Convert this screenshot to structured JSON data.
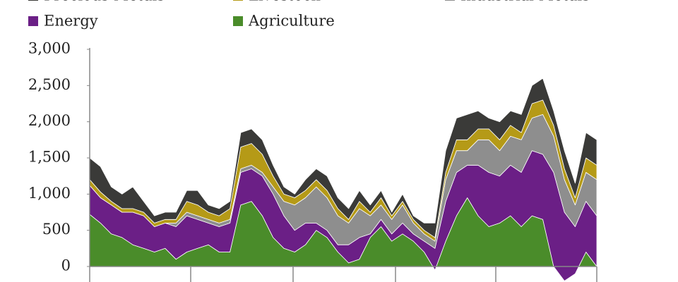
{
  "chart_data": {
    "type": "stacked_area",
    "categories": [
      null,
      null,
      null,
      null,
      null,
      null,
      null,
      null,
      null,
      null,
      null,
      null,
      null,
      null,
      null,
      null,
      null,
      null,
      null,
      null,
      null,
      null,
      null,
      null,
      null,
      null,
      null,
      null,
      null,
      null,
      null,
      null,
      null,
      null,
      null,
      null,
      null,
      null,
      null,
      null,
      null,
      null,
      null,
      null,
      null,
      null,
      null,
      null
    ],
    "series": [
      {
        "name": "Precious Metals",
        "color": "#3a3a38",
        "values": [
          300,
          350,
          200,
          200,
          300,
          150,
          100,
          100,
          100,
          150,
          200,
          100,
          100,
          100,
          200,
          200,
          200,
          150,
          100,
          50,
          150,
          150,
          200,
          150,
          150,
          150,
          100,
          100,
          50,
          100,
          50,
          100,
          200,
          300,
          300,
          350,
          250,
          150,
          250,
          200,
          250,
          250,
          300,
          200,
          250,
          200,
          350,
          350
        ]
      },
      {
        "name": "Livestock",
        "color": "#b59a17",
        "values": [
          80,
          80,
          50,
          50,
          50,
          50,
          50,
          50,
          50,
          150,
          150,
          100,
          100,
          150,
          300,
          300,
          250,
          150,
          100,
          100,
          100,
          100,
          100,
          100,
          50,
          100,
          50,
          100,
          50,
          50,
          50,
          50,
          50,
          100,
          150,
          150,
          150,
          150,
          150,
          150,
          100,
          200,
          200,
          150,
          150,
          100,
          200,
          200
        ]
      },
      {
        "name": "Industrial Metals",
        "color": "#8e8e8e",
        "values": [
          0,
          0,
          0,
          0,
          0,
          0,
          0,
          0,
          50,
          50,
          50,
          50,
          50,
          50,
          50,
          50,
          50,
          100,
          200,
          350,
          350,
          500,
          450,
          400,
          300,
          400,
          250,
          200,
          200,
          250,
          150,
          100,
          100,
          300,
          300,
          200,
          350,
          450,
          350,
          400,
          450,
          450,
          550,
          500,
          450,
          300,
          400,
          500
        ]
      },
      {
        "name": "Energy",
        "color": "#6b1f86",
        "values": [
          400,
          350,
          400,
          350,
          450,
          450,
          350,
          350,
          450,
          500,
          400,
          300,
          350,
          400,
          450,
          450,
          550,
          600,
          450,
          300,
          300,
          100,
          100,
          100,
          250,
          300,
          50,
          100,
          100,
          150,
          100,
          150,
          300,
          550,
          600,
          450,
          700,
          750,
          650,
          700,
          750,
          900,
          900,
          1300,
          950,
          650,
          700,
          700
        ]
      },
      {
        "name": "Agriculture",
        "color": "#4a8c2a",
        "values": [
          720,
          600,
          450,
          400,
          300,
          250,
          200,
          250,
          100,
          200,
          250,
          300,
          200,
          200,
          850,
          900,
          700,
          400,
          250,
          200,
          300,
          500,
          400,
          200,
          50,
          100,
          400,
          550,
          350,
          450,
          350,
          200,
          -50,
          350,
          700,
          950,
          700,
          550,
          600,
          700,
          550,
          700,
          650,
          0,
          -200,
          -100,
          200,
          0
        ]
      }
    ],
    "ylim": [
      -300,
      3000
    ],
    "yticks": [
      0,
      {
        "value": 500,
        "label": "500"
      },
      {
        "value": 1000,
        "label": "1,000"
      },
      {
        "value": 1500,
        "label": "1,500"
      },
      {
        "value": 2000,
        "label": "2,000"
      },
      {
        "value": 2500,
        "label": "2,500"
      },
      {
        "value": 3000,
        "label": "3,000"
      }
    ]
  }
}
